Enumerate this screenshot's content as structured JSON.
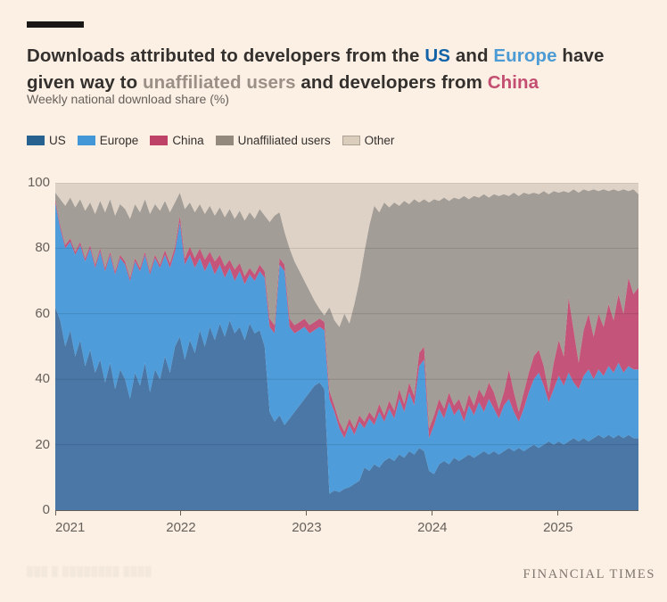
{
  "page": {
    "background": "#FCF0E4"
  },
  "header": {
    "title_segments": [
      {
        "text": "Downloads attributed to developers from the ",
        "color": "#33302E"
      },
      {
        "text": "US",
        "color": "#1262A8"
      },
      {
        "text": " and ",
        "color": "#33302E"
      },
      {
        "text": "Europe",
        "color": "#4D9BD5"
      },
      {
        "text": " have given way to ",
        "color": "#33302E"
      },
      {
        "text": "unaffiliated users",
        "color": "#9A9086"
      },
      {
        "text": " and developers from ",
        "color": "#33302E"
      },
      {
        "text": "China",
        "color": "#C34E72"
      }
    ],
    "subtitle": "Weekly national download share (%)"
  },
  "legend": [
    {
      "label": "US",
      "color": "#27618F",
      "border": false
    },
    {
      "label": "Europe",
      "color": "#4497D6",
      "border": false
    },
    {
      "label": "China",
      "color": "#BE4168",
      "border": false
    },
    {
      "label": "Unaffiliated users",
      "color": "#93897C",
      "border": false
    },
    {
      "label": "Other",
      "color": "#DACDBC",
      "border": true
    }
  ],
  "chart_data": {
    "type": "area",
    "stacked": true,
    "title": "Weekly national download share (%)",
    "xlabel": "",
    "ylabel": "",
    "unit": "%",
    "x_start": 2021.0,
    "x_end": 2025.64,
    "x_ticks": [
      2021,
      2022,
      2023,
      2024,
      2025
    ],
    "ylim": [
      0,
      100
    ],
    "y_ticks": [
      0,
      20,
      40,
      60,
      80,
      100
    ],
    "grid": true,
    "legend_position": "top",
    "series": [
      {
        "name": "US",
        "color": "#4A77A6",
        "values": [
          62,
          58,
          50,
          55,
          47,
          52,
          44,
          49,
          42,
          46,
          39,
          45,
          37,
          43,
          40,
          34,
          42,
          38,
          45,
          36,
          43,
          40,
          47,
          42,
          50,
          53,
          46,
          52,
          48,
          55,
          50,
          56,
          52,
          57,
          53,
          58,
          54,
          56,
          52,
          57,
          54,
          55,
          50,
          30,
          27,
          29,
          26,
          28,
          30,
          32,
          34,
          36,
          38,
          39,
          37,
          5,
          6,
          5.5,
          6.5,
          7,
          8,
          9,
          13,
          12,
          14,
          13,
          15,
          16,
          15,
          17,
          16,
          18,
          17,
          19,
          18,
          12,
          11,
          14,
          15,
          14,
          16,
          15,
          16,
          17,
          16,
          17,
          18,
          17,
          18,
          17,
          18,
          19,
          18,
          19,
          18,
          19,
          20,
          19,
          20,
          21,
          20,
          21,
          20,
          21,
          22,
          21,
          22,
          21,
          22,
          23,
          22,
          23,
          22,
          23,
          22,
          23,
          22,
          22
        ]
      },
      {
        "name": "Europe",
        "color": "#4E9DDA",
        "values": [
          32,
          28,
          30,
          27,
          31,
          29,
          32,
          31,
          32,
          33,
          34,
          33,
          35,
          34,
          35,
          36,
          34,
          35,
          33,
          36,
          34,
          34,
          31,
          32,
          29,
          35,
          29,
          26,
          26,
          22,
          23,
          20,
          20,
          18,
          18,
          16,
          16,
          17,
          17,
          15,
          16,
          18,
          21,
          26,
          27,
          46,
          47,
          28,
          24,
          23,
          22,
          18,
          17,
          17,
          18,
          29,
          24,
          19.5,
          15.5,
          19,
          15,
          18,
          12,
          16,
          12,
          17,
          12,
          15,
          13,
          17,
          14,
          18,
          15,
          25,
          28,
          10,
          15,
          17,
          13,
          19,
          13,
          16,
          11,
          15,
          13,
          16,
          12,
          17,
          13,
          11,
          14,
          15,
          12,
          8,
          13,
          17,
          20,
          23,
          18,
          12,
          17,
          20,
          18,
          21,
          17,
          16,
          19,
          22,
          18,
          20,
          19,
          21,
          20,
          22,
          20,
          21,
          21,
          21
        ]
      },
      {
        "name": "China",
        "color": "#C4547A",
        "values": [
          1,
          1,
          1,
          1,
          1,
          1,
          1,
          1,
          1,
          1,
          1,
          1,
          1,
          1,
          1,
          1,
          1,
          1,
          1,
          1,
          1,
          1,
          1.5,
          1.5,
          1.5,
          2,
          2,
          2.5,
          3,
          3,
          3.5,
          3,
          4,
          3,
          3.5,
          2.5,
          3.5,
          2.5,
          2.5,
          2,
          2,
          2,
          2,
          2.5,
          2.5,
          2,
          2,
          2.5,
          2.5,
          2.5,
          2.5,
          2.5,
          2.5,
          2.5,
          2.5,
          2.5,
          2,
          2,
          2,
          2,
          2,
          2,
          2,
          2,
          2,
          2.5,
          2,
          2.5,
          2.5,
          3,
          2.5,
          3,
          3,
          4,
          4,
          3,
          3,
          3,
          3,
          3,
          3,
          3,
          3,
          3.5,
          3,
          4,
          4.5,
          5,
          5,
          3,
          4,
          9,
          6,
          3,
          5,
          6,
          7,
          7,
          6,
          3,
          8,
          11,
          9,
          23,
          16,
          8,
          14,
          17,
          13,
          17,
          15,
          19,
          16,
          21,
          18,
          27,
          23,
          25
        ]
      },
      {
        "name": "Unaffiliated users",
        "color": "#A29D96",
        "values": [
          2,
          8,
          12,
          12.5,
          13.5,
          13,
          14.5,
          13,
          15.5,
          14.5,
          17,
          16,
          17,
          15.5,
          16,
          18,
          16.5,
          17,
          16,
          17.5,
          15.5,
          16.5,
          15,
          15.5,
          13.5,
          7,
          15,
          13.5,
          14,
          13.5,
          14,
          14,
          14,
          14.5,
          15,
          15.5,
          15.5,
          16,
          17,
          17,
          17,
          17,
          17,
          29.5,
          33.5,
          14,
          10,
          21.5,
          19.5,
          15.5,
          11.5,
          10.5,
          6.5,
          3,
          2,
          25.5,
          26,
          29,
          36,
          29,
          38,
          41,
          52,
          57,
          65,
          58.5,
          65,
          59,
          63.5,
          56,
          62,
          54.5,
          60,
          46,
          45,
          69,
          66,
          60.5,
          64.5,
          58.5,
          63.5,
          61,
          66,
          59.5,
          64,
          58.5,
          62,
          56.5,
          60.5,
          65,
          60.5,
          53,
          61,
          66,
          61,
          54.5,
          50,
          47.5,
          53.5,
          60.5,
          52.5,
          45,
          50.5,
          32,
          43,
          52,
          43,
          37.5,
          45,
          37.5,
          42,
          34.5,
          40,
          31.5,
          38,
          26.5,
          32,
          28.5
        ]
      },
      {
        "name": "Other",
        "color": "#DED2C7",
        "values": [
          3,
          5,
          7,
          4.5,
          7.5,
          5,
          8.5,
          6,
          9.5,
          5.5,
          9,
          5,
          10,
          6.5,
          8,
          11,
          6.5,
          9,
          5,
          9.5,
          6.5,
          8.5,
          5.5,
          9,
          6,
          3,
          8,
          6,
          9,
          6.5,
          9.5,
          7,
          10,
          7.5,
          10.5,
          8,
          11,
          8.5,
          11.5,
          9,
          11,
          8,
          10,
          12,
          10,
          9,
          15,
          20,
          24,
          27,
          30,
          33,
          36,
          38.5,
          40.5,
          38,
          42,
          44,
          40,
          43,
          37,
          30,
          21,
          13,
          7,
          9,
          6,
          7.5,
          6,
          7,
          5.5,
          6.5,
          5,
          6,
          5,
          6,
          5,
          5.5,
          4.5,
          5.5,
          4.5,
          5,
          4,
          5,
          4,
          4.5,
          3.5,
          4.5,
          3.5,
          4,
          3.5,
          4,
          3,
          4,
          3,
          3.5,
          3,
          3.5,
          2.5,
          3.5,
          2.5,
          3,
          2.5,
          3,
          2,
          3,
          2,
          2.5,
          2,
          2.5,
          2,
          2.5,
          2,
          2.5,
          2,
          2.5,
          2,
          3.5
        ]
      }
    ]
  },
  "footer": {
    "left_illegible": "███ █ ████████ ████",
    "brand": "FINANCIAL TIMES"
  }
}
